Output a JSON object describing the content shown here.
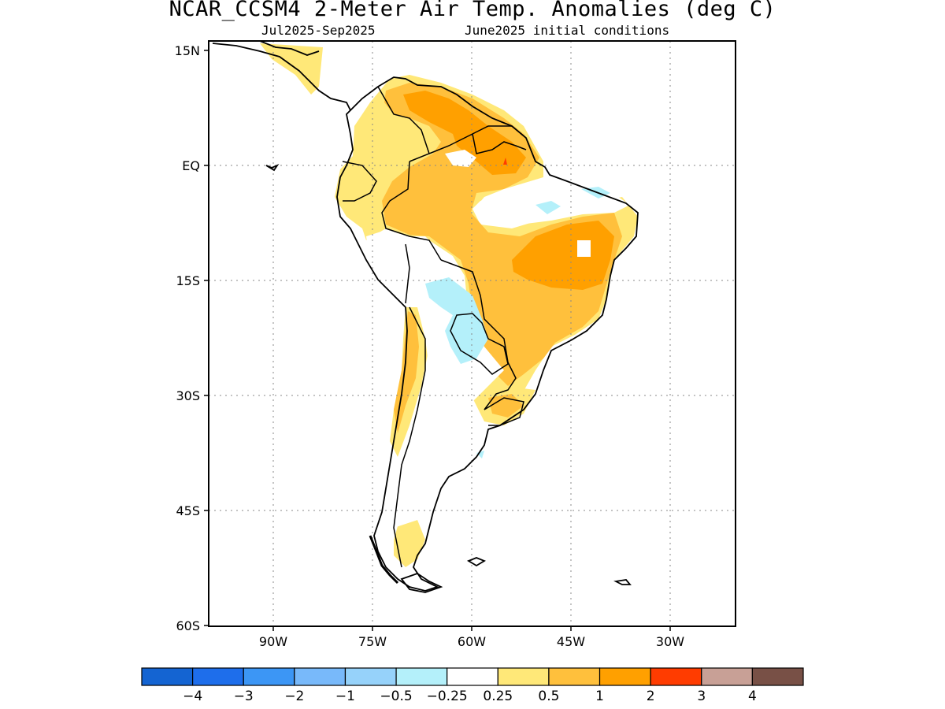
{
  "title": "NCAR_CCSM4 2-Meter Air Temp. Anomalies (deg C)",
  "subtitle_left": "Jul2025-Sep2025",
  "subtitle_right": "June2025 initial conditions",
  "map": {
    "lat_ticks": [
      "15N",
      "EQ",
      "15S",
      "30S",
      "45S",
      "60S"
    ],
    "lon_ticks": [
      "90W",
      "75W",
      "60W",
      "45W",
      "30W"
    ],
    "gridlines": "dotted",
    "region": "South America"
  },
  "colorbar": {
    "colors": [
      "#1464d2",
      "#1e6eeb",
      "#3c96f5",
      "#78b9fa",
      "#96d2fa",
      "#b4f0fa",
      "#ffffff",
      "#ffe878",
      "#ffc03c",
      "#ffa000",
      "#ff3c00",
      "#c8a096",
      "#785046"
    ],
    "labels": [
      "-4",
      "-3",
      "-2",
      "-1",
      "-0.5",
      "-0.25",
      "0.25",
      "0.5",
      "1",
      "2",
      "3",
      "4"
    ]
  }
}
